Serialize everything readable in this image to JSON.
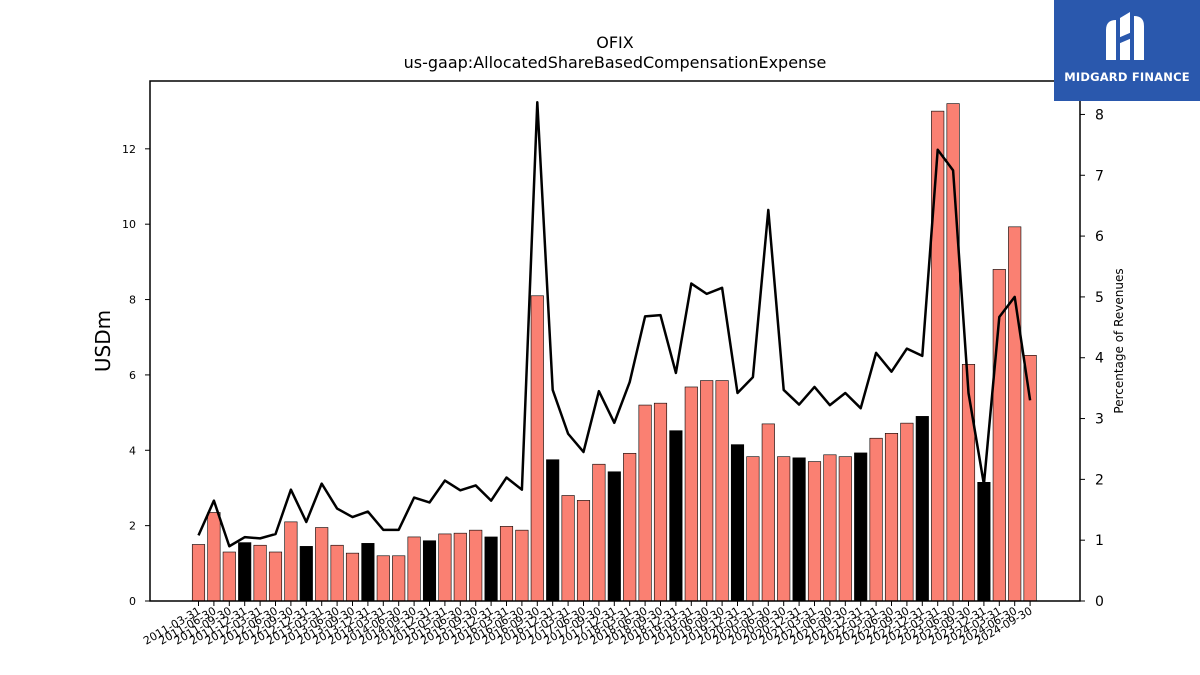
{
  "chart_data": {
    "type": "bar",
    "title": "OFIX",
    "subtitle": "us-gaap:AllocatedShareBasedCompensationExpense",
    "ylabel": "USDm",
    "y2label": "Percentage of Revenues",
    "ylim": [
      0,
      13.8
    ],
    "y2lim": [
      0,
      8.55
    ],
    "yticks": [
      "0",
      "2",
      "4",
      "6",
      "8",
      "10",
      "12"
    ],
    "y2ticks": [
      "0",
      "1",
      "2",
      "3",
      "4",
      "5",
      "6",
      "7",
      "8"
    ],
    "colors": {
      "bar": "#fa8072",
      "bar_q4": "#000000",
      "line": "#000000"
    },
    "categories": [
      "2011-03-31",
      "2011-06-30",
      "2011-09-30",
      "2011-12-31",
      "2012-03-31",
      "2012-06-30",
      "2012-09-30",
      "2012-12-31",
      "2013-03-31",
      "2013-06-30",
      "2013-09-30",
      "2013-12-31",
      "2014-03-31",
      "2014-06-30",
      "2014-09-30",
      "2014-12-31",
      "2015-03-31",
      "2015-06-30",
      "2015-09-30",
      "2015-12-31",
      "2016-03-31",
      "2016-06-30",
      "2016-09-30",
      "2016-12-31",
      "2017-03-31",
      "2017-06-30",
      "2017-09-30",
      "2017-12-31",
      "2018-03-31",
      "2018-06-30",
      "2018-09-30",
      "2018-12-31",
      "2019-03-31",
      "2019-06-30",
      "2019-09-30",
      "2019-12-31",
      "2020-03-31",
      "2020-06-30",
      "2020-09-30",
      "2020-12-31",
      "2021-03-31",
      "2021-06-30",
      "2021-09-30",
      "2021-12-31",
      "2022-03-31",
      "2022-06-30",
      "2022-09-30",
      "2022-12-31",
      "2023-03-31",
      "2023-06-30",
      "2023-09-30",
      "2023-12-31",
      "2024-03-31",
      "2024-06-30",
      "2024-09-30"
    ],
    "series": [
      {
        "kind": "bar",
        "values": [
          1.5,
          2.35,
          1.3,
          1.55,
          1.48,
          1.3,
          2.1,
          1.45,
          1.95,
          1.48,
          1.27,
          1.53,
          1.2,
          1.2,
          1.7,
          1.6,
          1.78,
          1.8,
          1.88,
          1.7,
          1.98,
          1.88,
          8.1,
          3.75,
          2.8,
          2.67,
          3.63,
          3.43,
          3.92,
          5.2,
          5.25,
          4.52,
          5.68,
          5.85,
          5.85,
          4.15,
          3.83,
          4.7,
          3.83,
          3.8,
          3.7,
          3.88,
          3.83,
          3.93,
          4.32,
          4.45,
          4.72,
          4.9,
          13.0,
          13.2,
          6.28,
          3.15,
          8.8,
          9.93,
          6.52
        ]
      },
      {
        "kind": "line",
        "values": [
          1.08,
          1.65,
          0.9,
          1.05,
          1.03,
          1.1,
          1.83,
          1.3,
          1.93,
          1.52,
          1.38,
          1.47,
          1.17,
          1.17,
          1.7,
          1.62,
          1.98,
          1.82,
          1.9,
          1.65,
          2.03,
          1.83,
          8.2,
          3.47,
          2.75,
          2.45,
          3.45,
          2.93,
          3.6,
          4.68,
          4.7,
          3.75,
          5.22,
          5.05,
          5.15,
          3.42,
          3.68,
          6.43,
          3.47,
          3.23,
          3.52,
          3.22,
          3.42,
          3.17,
          4.08,
          3.77,
          4.15,
          4.03,
          7.42,
          7.08,
          3.42,
          1.92,
          4.67,
          5.0,
          3.3
        ]
      }
    ]
  },
  "logo": {
    "text": "MIDGARD FINANCE"
  }
}
